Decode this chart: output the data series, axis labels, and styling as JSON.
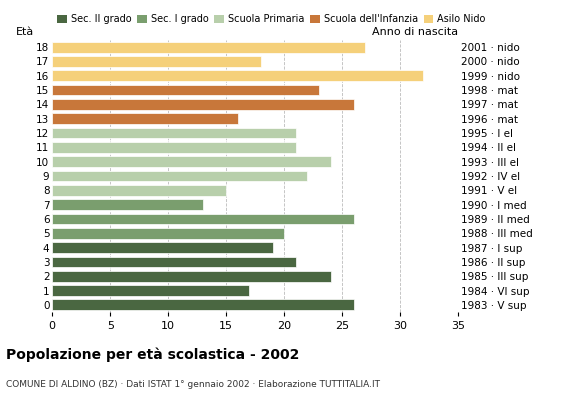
{
  "title": "Popolazione per età scolastica - 2002",
  "subtitle": "COMUNE DI ALDINO (BZ) · Dati ISTAT 1° gennaio 2002 · Elaborazione TUTTITALIA.IT",
  "xlabel_left": "Età",
  "xlabel_right": "Anno di nascita",
  "ages": [
    18,
    17,
    16,
    15,
    14,
    13,
    12,
    11,
    10,
    9,
    8,
    7,
    6,
    5,
    4,
    3,
    2,
    1,
    0
  ],
  "values": [
    26,
    17,
    24,
    21,
    19,
    20,
    26,
    13,
    15,
    22,
    24,
    21,
    21,
    16,
    26,
    23,
    32,
    18,
    27
  ],
  "years_labels": [
    "1983 · V sup",
    "1984 · VI sup",
    "1985 · III sup",
    "1986 · II sup",
    "1987 · I sup",
    "1988 · III med",
    "1989 · II med",
    "1990 · I med",
    "1991 · V el",
    "1992 · IV el",
    "1993 · III el",
    "1994 · II el",
    "1995 · I el",
    "1996 · mat",
    "1997 · mat",
    "1998 · mat",
    "1999 · nido",
    "2000 · nido",
    "2001 · nido"
  ],
  "colors": [
    "#4a6741",
    "#4a6741",
    "#4a6741",
    "#4a6741",
    "#4a6741",
    "#7a9e6e",
    "#7a9e6e",
    "#7a9e6e",
    "#b8cfab",
    "#b8cfab",
    "#b8cfab",
    "#b8cfab",
    "#b8cfab",
    "#c8773a",
    "#c8773a",
    "#c8773a",
    "#f5d07a",
    "#f5d07a",
    "#f5d07a"
  ],
  "legend_labels": [
    "Sec. II grado",
    "Sec. I grado",
    "Scuola Primaria",
    "Scuola dell'Infanzia",
    "Asilo Nido"
  ],
  "legend_colors": [
    "#4a6741",
    "#7a9e6e",
    "#b8cfab",
    "#c8773a",
    "#f5d07a"
  ],
  "xlim": [
    0,
    35
  ],
  "xticks": [
    0,
    5,
    10,
    15,
    20,
    25,
    30,
    35
  ],
  "background_color": "#ffffff",
  "grid_color": "#bbbbbb"
}
